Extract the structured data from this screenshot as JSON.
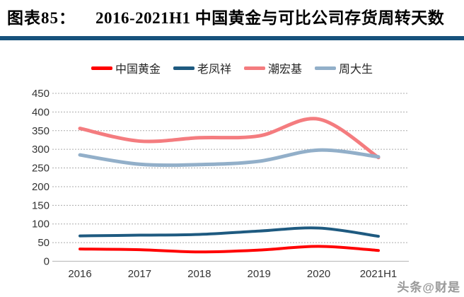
{
  "header": {
    "figure_label": "图表85：",
    "title": "2016-2021H1 中国黄金与可比公司存货周转天数"
  },
  "watermark": "头条@财是",
  "colors": {
    "divider": "#17527C",
    "grid": "#ABABAB",
    "axis": "#BFBFBF",
    "tick_text": "#333333",
    "legend_text": "#262626",
    "watermark_text": "#999999"
  },
  "chart_data": {
    "type": "line",
    "title": "2016-2021H1 中国黄金与可比公司存货周转天数",
    "categories": [
      "2016",
      "2017",
      "2018",
      "2019",
      "2020",
      "2021H1"
    ],
    "series": [
      {
        "name": "中国黄金",
        "color": "#FF0000",
        "values": [
          33,
          31,
          25,
          30,
          40,
          29
        ]
      },
      {
        "name": "老凤祥",
        "color": "#1E5A80",
        "values": [
          68,
          70,
          72,
          81,
          89,
          67
        ]
      },
      {
        "name": "潮宏基",
        "color": "#F47C7F",
        "values": [
          356,
          322,
          331,
          336,
          381,
          278
        ]
      },
      {
        "name": "周大生",
        "color": "#92AFC9",
        "values": [
          285,
          260,
          259,
          268,
          298,
          280
        ]
      }
    ],
    "ylim": [
      0,
      450
    ],
    "ytick_step": 50,
    "yticks": [
      0,
      50,
      100,
      150,
      200,
      250,
      300,
      350,
      400,
      450
    ],
    "grid": "dashed-horizontal",
    "legend_position": "top",
    "line_style": "smooth"
  }
}
